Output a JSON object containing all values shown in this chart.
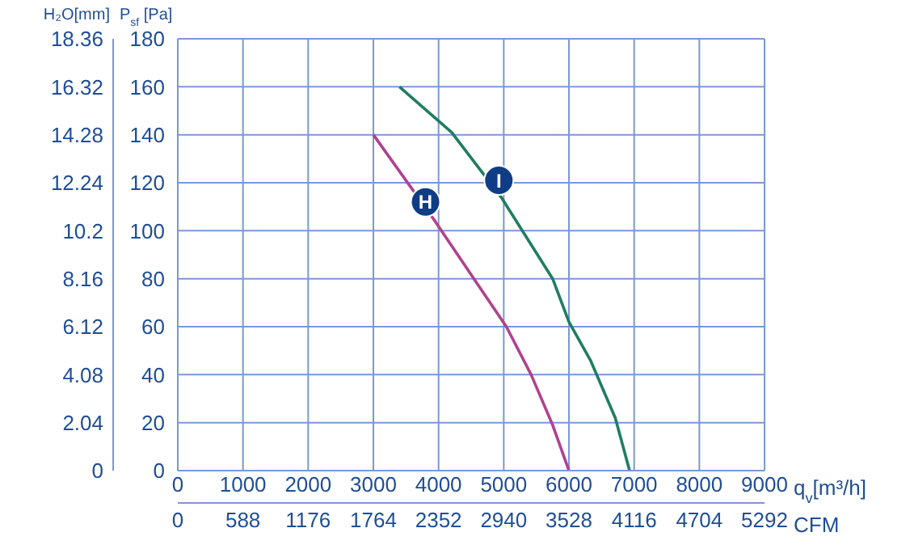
{
  "chart_data": {
    "type": "line",
    "xlabel": "q$_{v}$[m³/h]",
    "x2label": "CFM",
    "ylabel": "P$_{sf}$ [Pa]",
    "y2label": "H₂O[mm]",
    "series": [
      {
        "color": "#1f7d62",
        "x": [
          3400,
          4200,
          4960,
          5750,
          6000,
          6330,
          6710,
          6930
        ],
        "values": [
          160,
          141,
          114,
          80,
          62,
          46,
          22,
          0
        ]
      },
      {
        "color": "#b0428f",
        "x": [
          3000,
          3920,
          4590,
          5040,
          5420,
          5750,
          6000
        ],
        "values": [
          140,
          105,
          78,
          60,
          40,
          19,
          0
        ]
      }
    ],
    "xlim": [
      0,
      9000
    ],
    "xticks": [
      0,
      1000,
      2000,
      3000,
      4000,
      5000,
      6000,
      7000,
      8000,
      9000
    ],
    "x2lim": [
      0,
      5292
    ],
    "x2ticks": [
      0,
      588,
      1176,
      1764,
      2352,
      2940,
      3528,
      4116,
      4704,
      5292
    ],
    "ylim": [
      0,
      180
    ],
    "yticks": [
      0,
      20,
      40,
      60,
      80,
      100,
      120,
      140,
      160,
      180
    ],
    "y2lim": [
      0,
      18.36
    ],
    "y2ticks": [
      0,
      2.04,
      4.08,
      6.12,
      8.16,
      10.2,
      12.24,
      14.28,
      16.32,
      18.36
    ],
    "annotations": [
      {
        "text": "H",
        "x": 3800,
        "y": 112
      },
      {
        "text": "I",
        "x": 4925,
        "y": 121
      }
    ],
    "grid": true,
    "marker": "none",
    "line_style": "solid"
  }
}
